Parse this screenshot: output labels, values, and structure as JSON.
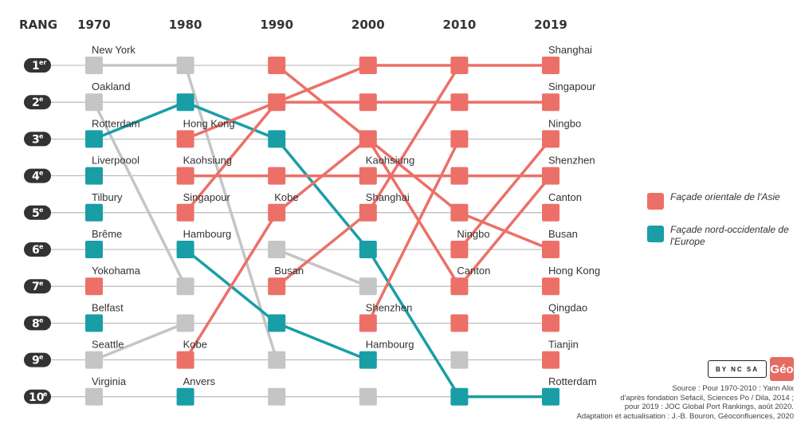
{
  "colors": {
    "asia": "#ec7068",
    "europe": "#199ea6",
    "other": "#c5c5c5"
  },
  "header": {
    "rank": "RANG"
  },
  "ranks": [
    {
      "num": "1",
      "sup": "er"
    },
    {
      "num": "2",
      "sup": "e"
    },
    {
      "num": "3",
      "sup": "e"
    },
    {
      "num": "4",
      "sup": "e"
    },
    {
      "num": "5",
      "sup": "e"
    },
    {
      "num": "6",
      "sup": "e"
    },
    {
      "num": "7",
      "sup": "e"
    },
    {
      "num": "8",
      "sup": "e"
    },
    {
      "num": "9",
      "sup": "e"
    },
    {
      "num": "10",
      "sup": "e"
    }
  ],
  "chart_data": {
    "type": "bump",
    "years": [
      "1970",
      "1980",
      "1990",
      "2000",
      "2010",
      "2019"
    ],
    "columns": [
      {
        "year": "1970",
        "ports": [
          {
            "rank": 1,
            "name": "New York",
            "group": "other"
          },
          {
            "rank": 2,
            "name": "Oakland",
            "group": "other"
          },
          {
            "rank": 3,
            "name": "Rotterdam",
            "group": "europe"
          },
          {
            "rank": 4,
            "name": "Liverpoool",
            "group": "europe"
          },
          {
            "rank": 5,
            "name": "Tilbury",
            "group": "europe"
          },
          {
            "rank": 6,
            "name": "Brême",
            "group": "europe"
          },
          {
            "rank": 7,
            "name": "Yokohama",
            "group": "asia"
          },
          {
            "rank": 8,
            "name": "Belfast",
            "group": "europe"
          },
          {
            "rank": 9,
            "name": "Seattle",
            "group": "other"
          },
          {
            "rank": 10,
            "name": "Virginia",
            "group": "other"
          }
        ]
      },
      {
        "year": "1980",
        "ports": [
          {
            "rank": 1,
            "name": "",
            "group": "other"
          },
          {
            "rank": 2,
            "name": "",
            "group": "europe"
          },
          {
            "rank": 3,
            "name": "Hong Kong",
            "group": "asia"
          },
          {
            "rank": 4,
            "name": "Kaohsiung",
            "group": "asia"
          },
          {
            "rank": 5,
            "name": "Singapour",
            "group": "asia"
          },
          {
            "rank": 6,
            "name": "Hambourg",
            "group": "europe"
          },
          {
            "rank": 7,
            "name": "",
            "group": "other"
          },
          {
            "rank": 8,
            "name": "",
            "group": "other"
          },
          {
            "rank": 9,
            "name": "Kobe",
            "group": "asia"
          },
          {
            "rank": 10,
            "name": "Anvers",
            "group": "europe"
          }
        ]
      },
      {
        "year": "1990",
        "ports": [
          {
            "rank": 1,
            "name": "",
            "group": "asia"
          },
          {
            "rank": 2,
            "name": "",
            "group": "asia"
          },
          {
            "rank": 3,
            "name": "",
            "group": "europe"
          },
          {
            "rank": 4,
            "name": "",
            "group": "asia"
          },
          {
            "rank": 5,
            "name": "Kobe",
            "group": "asia"
          },
          {
            "rank": 6,
            "name": "",
            "group": "other"
          },
          {
            "rank": 7,
            "name": "Busan",
            "group": "asia"
          },
          {
            "rank": 8,
            "name": "",
            "group": "europe"
          },
          {
            "rank": 9,
            "name": "",
            "group": "other"
          },
          {
            "rank": 10,
            "name": "",
            "group": "other"
          }
        ]
      },
      {
        "year": "2000",
        "ports": [
          {
            "rank": 1,
            "name": "",
            "group": "asia"
          },
          {
            "rank": 2,
            "name": "",
            "group": "asia"
          },
          {
            "rank": 3,
            "name": "",
            "group": "asia"
          },
          {
            "rank": 4,
            "name": "Kaohsiung",
            "group": "asia"
          },
          {
            "rank": 5,
            "name": "Shanghai",
            "group": "asia"
          },
          {
            "rank": 6,
            "name": "",
            "group": "europe"
          },
          {
            "rank": 7,
            "name": "",
            "group": "other"
          },
          {
            "rank": 8,
            "name": "Shenzhen",
            "group": "asia"
          },
          {
            "rank": 9,
            "name": "Hambourg",
            "group": "europe"
          },
          {
            "rank": 10,
            "name": "",
            "group": "other"
          }
        ]
      },
      {
        "year": "2010",
        "ports": [
          {
            "rank": 1,
            "name": "",
            "group": "asia"
          },
          {
            "rank": 2,
            "name": "",
            "group": "asia"
          },
          {
            "rank": 3,
            "name": "",
            "group": "asia"
          },
          {
            "rank": 4,
            "name": "",
            "group": "asia"
          },
          {
            "rank": 5,
            "name": "",
            "group": "asia"
          },
          {
            "rank": 6,
            "name": "Ningbo",
            "group": "asia"
          },
          {
            "rank": 7,
            "name": "Canton",
            "group": "asia"
          },
          {
            "rank": 8,
            "name": "",
            "group": "asia"
          },
          {
            "rank": 9,
            "name": "",
            "group": "other"
          },
          {
            "rank": 10,
            "name": "",
            "group": "europe"
          }
        ]
      },
      {
        "year": "2019",
        "ports": [
          {
            "rank": 1,
            "name": "Shanghai",
            "group": "asia"
          },
          {
            "rank": 2,
            "name": "Singapour",
            "group": "asia"
          },
          {
            "rank": 3,
            "name": "Ningbo",
            "group": "asia"
          },
          {
            "rank": 4,
            "name": "Shenzhen",
            "group": "asia"
          },
          {
            "rank": 5,
            "name": "Canton",
            "group": "asia"
          },
          {
            "rank": 6,
            "name": "Busan",
            "group": "asia"
          },
          {
            "rank": 7,
            "name": "Hong Kong",
            "group": "asia"
          },
          {
            "rank": 8,
            "name": "Qingdao",
            "group": "asia"
          },
          {
            "rank": 9,
            "name": "Tianjin",
            "group": "asia"
          },
          {
            "rank": 10,
            "name": "Rotterdam",
            "group": "europe"
          }
        ]
      }
    ],
    "links": [
      {
        "group": "other",
        "ranks": [
          1,
          1,
          9
        ]
      },
      {
        "group": "other",
        "ranks": [
          2,
          7
        ]
      },
      {
        "group": "europe",
        "ranks": [
          3,
          2,
          3,
          6,
          10,
          10
        ]
      },
      {
        "group": "other",
        "ranks": [
          9,
          8
        ]
      },
      {
        "group": "europe",
        "ranks": [
          6,
          8,
          9
        ],
        "start": 1
      },
      {
        "group": "other",
        "ranks": [
          6,
          7
        ],
        "start": 2
      },
      {
        "group": "asia",
        "ranks": [
          3,
          2,
          1,
          1,
          1
        ],
        "start": 1
      },
      {
        "group": "asia",
        "ranks": [
          5,
          2,
          2,
          2,
          2
        ],
        "start": 1
      },
      {
        "group": "asia",
        "ranks": [
          4,
          4,
          4,
          4,
          4
        ],
        "start": 1
      },
      {
        "group": "asia",
        "ranks": [
          9,
          5,
          3,
          5,
          6
        ],
        "start": 1
      },
      {
        "group": "asia",
        "ranks": [
          1,
          3,
          7
        ],
        "start": 2
      },
      {
        "group": "asia",
        "ranks": [
          7,
          5
        ],
        "start": 2
      },
      {
        "group": "asia",
        "ranks": [
          5,
          1
        ],
        "start": 3
      },
      {
        "group": "asia",
        "ranks": [
          8,
          3
        ],
        "start": 3
      },
      {
        "group": "asia",
        "ranks": [
          6,
          3
        ],
        "start": 4
      },
      {
        "group": "asia",
        "ranks": [
          7,
          4
        ],
        "start": 4
      }
    ],
    "legend": [
      {
        "group": "asia",
        "label": "Façade orientale de l'Asie"
      },
      {
        "group": "europe",
        "label": "Façade nord-occidentale de l'Europe"
      }
    ]
  },
  "license": {
    "cc": "BY NC SA",
    "logo": "Géo"
  },
  "source": [
    "Source : Pour 1970-2010 : Yann Alix",
    "d'après fondation Sefacil, Sciences Po / Dila, 2014 ;",
    "pour 2019 : JOC Global Port Rankings, août 2020.",
    "Adaptation et actualisation : J.-B. Bouron, Géoconfluences, 2020"
  ]
}
